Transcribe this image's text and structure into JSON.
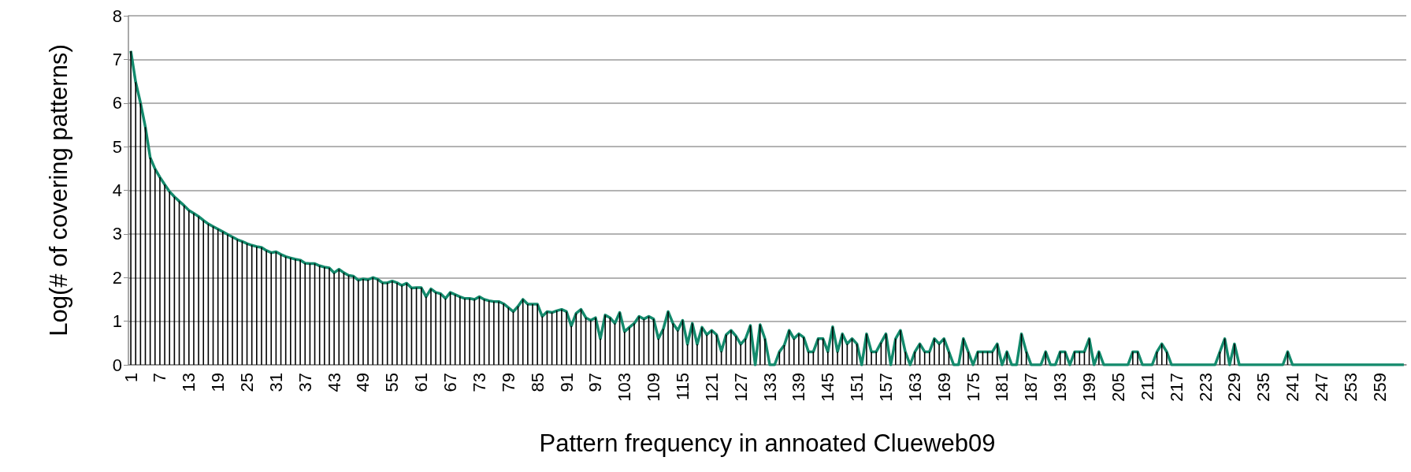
{
  "chart_data": {
    "type": "bar",
    "xlabel": "Pattern frequency in annoated Clueweb09",
    "ylabel": "Log(# of covering patterns)",
    "categories": [
      "1",
      null,
      null,
      null,
      null,
      null,
      "7",
      null,
      null,
      null,
      null,
      null,
      "13",
      null,
      null,
      null,
      null,
      null,
      "19",
      null,
      null,
      null,
      null,
      null,
      "25",
      null,
      null,
      null,
      null,
      null,
      "31",
      null,
      null,
      null,
      null,
      null,
      "37",
      null,
      null,
      null,
      null,
      null,
      "43",
      null,
      null,
      null,
      null,
      null,
      "49",
      null,
      null,
      null,
      null,
      null,
      "55",
      null,
      null,
      null,
      null,
      null,
      "61",
      null,
      null,
      null,
      null,
      null,
      "67",
      null,
      null,
      null,
      null,
      null,
      "73",
      null,
      null,
      null,
      null,
      null,
      "79",
      null,
      null,
      null,
      null,
      null,
      "85",
      null,
      null,
      null,
      null,
      null,
      "91",
      null,
      null,
      null,
      null,
      null,
      "97",
      null,
      null,
      null,
      null,
      null,
      "103",
      null,
      null,
      null,
      null,
      null,
      "109",
      null,
      null,
      null,
      null,
      null,
      "115",
      null,
      null,
      null,
      null,
      null,
      "121",
      null,
      null,
      null,
      null,
      null,
      "127",
      null,
      null,
      null,
      null,
      null,
      "133",
      null,
      null,
      null,
      null,
      null,
      "139",
      null,
      null,
      null,
      null,
      null,
      "145",
      null,
      null,
      null,
      null,
      null,
      "151",
      null,
      null,
      null,
      null,
      null,
      "157",
      null,
      null,
      null,
      null,
      null,
      "163",
      null,
      null,
      null,
      null,
      null,
      "169",
      null,
      null,
      null,
      null,
      null,
      "175",
      null,
      null,
      null,
      null,
      null,
      "181",
      null,
      null,
      null,
      null,
      null,
      "187",
      null,
      null,
      null,
      null,
      null,
      "193",
      null,
      null,
      null,
      null,
      null,
      "199",
      null,
      null,
      null,
      null,
      null,
      "205",
      null,
      null,
      null,
      null,
      null,
      "211",
      null,
      null,
      null,
      null,
      null,
      "217",
      null,
      null,
      null,
      null,
      null,
      "223",
      null,
      null,
      null,
      null,
      null,
      "229",
      null,
      null,
      null,
      null,
      null,
      "235",
      null,
      null,
      null,
      null,
      null,
      "241",
      null,
      null,
      null,
      null,
      null,
      "247",
      null,
      null,
      null,
      null,
      null,
      "253",
      null,
      null,
      null,
      null,
      null,
      "259",
      null,
      null,
      null,
      null,
      null
    ],
    "series": [
      {
        "color": "#000000",
        "values": [
          7.19,
          6.48,
          6.0,
          5.45,
          4.75,
          4.49,
          4.3,
          4.13,
          3.97,
          3.85,
          3.75,
          3.65,
          3.54,
          3.47,
          3.4,
          3.31,
          3.23,
          3.17,
          3.11,
          3.05,
          2.99,
          2.93,
          2.87,
          2.83,
          2.78,
          2.74,
          2.71,
          2.69,
          2.62,
          2.57,
          2.59,
          2.53,
          2.48,
          2.45,
          2.42,
          2.4,
          2.33,
          2.32,
          2.32,
          2.27,
          2.24,
          2.22,
          2.11,
          2.19,
          2.11,
          2.05,
          2.03,
          1.94,
          1.97,
          1.95,
          2.0,
          1.96,
          1.88,
          1.88,
          1.92,
          1.88,
          1.82,
          1.87,
          1.76,
          1.77,
          1.77,
          1.56,
          1.74,
          1.66,
          1.63,
          1.52,
          1.66,
          1.61,
          1.56,
          1.52,
          1.52,
          1.5,
          1.56,
          1.5,
          1.47,
          1.45,
          1.45,
          1.4,
          1.31,
          1.22,
          1.34,
          1.5,
          1.39,
          1.39,
          1.39,
          1.11,
          1.22,
          1.2,
          1.24,
          1.27,
          1.22,
          0.89,
          1.18,
          1.27,
          1.08,
          1.02,
          1.08,
          0.6,
          1.14,
          1.08,
          0.95,
          1.2,
          0.76,
          0.86,
          0.95,
          1.11,
          1.05,
          1.11,
          1.05,
          0.6,
          0.82,
          1.22,
          0.95,
          0.79,
          1.02,
          0.47,
          0.95,
          0.47,
          0.86,
          0.69,
          0.79,
          0.69,
          0.31,
          0.69,
          0.79,
          0.66,
          0.47,
          0.6,
          0.9,
          0,
          0.92,
          0.6,
          0,
          0,
          0.3,
          0.45,
          0.79,
          0.6,
          0.71,
          0.63,
          0.3,
          0.3,
          0.6,
          0.6,
          0.3,
          0.87,
          0.3,
          0.71,
          0.48,
          0.6,
          0.48,
          0,
          0.71,
          0.3,
          0.3,
          0.51,
          0.71,
          0,
          0.6,
          0.79,
          0.3,
          0,
          0.3,
          0.48,
          0.3,
          0.3,
          0.6,
          0.48,
          0.6,
          0.3,
          0,
          0,
          0.6,
          0.3,
          0,
          0.3,
          0.3,
          0.3,
          0.3,
          0.48,
          0,
          0.3,
          0,
          0,
          0.71,
          0.3,
          0,
          0,
          0,
          0.3,
          0,
          0,
          0.3,
          0.3,
          0,
          0.3,
          0.3,
          0.3,
          0.6,
          0,
          0.3,
          0,
          0,
          0,
          0,
          0,
          0,
          0.3,
          0.3,
          0,
          0,
          0,
          0.3,
          0.48,
          0.3,
          0,
          0,
          0,
          0,
          0,
          0,
          0,
          0,
          0,
          0,
          0.3,
          0.6,
          0,
          0.48,
          0,
          0,
          0,
          0,
          0,
          0,
          0,
          0,
          0,
          0,
          0.3,
          0,
          0,
          0,
          0,
          0,
          0,
          0,
          0,
          0,
          0,
          0,
          0,
          0,
          0,
          0,
          0,
          0,
          0,
          0,
          0,
          0,
          0,
          0,
          0
        ]
      },
      {
        "type": "line",
        "color": "#138a6c",
        "values": [
          7.19,
          6.48,
          6.0,
          5.45,
          4.75,
          4.49,
          4.3,
          4.13,
          3.97,
          3.85,
          3.75,
          3.65,
          3.54,
          3.47,
          3.4,
          3.31,
          3.23,
          3.17,
          3.11,
          3.05,
          2.99,
          2.93,
          2.87,
          2.83,
          2.78,
          2.74,
          2.71,
          2.69,
          2.62,
          2.57,
          2.59,
          2.53,
          2.48,
          2.45,
          2.42,
          2.4,
          2.33,
          2.32,
          2.32,
          2.27,
          2.24,
          2.22,
          2.11,
          2.19,
          2.11,
          2.05,
          2.03,
          1.94,
          1.97,
          1.95,
          2.0,
          1.96,
          1.88,
          1.88,
          1.92,
          1.88,
          1.82,
          1.87,
          1.76,
          1.77,
          1.77,
          1.56,
          1.74,
          1.66,
          1.63,
          1.52,
          1.66,
          1.61,
          1.56,
          1.52,
          1.52,
          1.5,
          1.56,
          1.5,
          1.47,
          1.45,
          1.45,
          1.4,
          1.31,
          1.22,
          1.34,
          1.5,
          1.39,
          1.39,
          1.39,
          1.11,
          1.22,
          1.2,
          1.24,
          1.27,
          1.22,
          0.89,
          1.18,
          1.27,
          1.08,
          1.02,
          1.08,
          0.6,
          1.14,
          1.08,
          0.95,
          1.2,
          0.76,
          0.86,
          0.95,
          1.11,
          1.05,
          1.11,
          1.05,
          0.6,
          0.82,
          1.22,
          0.95,
          0.79,
          1.02,
          0.47,
          0.95,
          0.47,
          0.86,
          0.69,
          0.79,
          0.69,
          0.31,
          0.69,
          0.79,
          0.66,
          0.47,
          0.6,
          0.9,
          0,
          0.92,
          0.6,
          0,
          0,
          0.3,
          0.45,
          0.79,
          0.6,
          0.71,
          0.63,
          0.3,
          0.3,
          0.6,
          0.6,
          0.3,
          0.87,
          0.3,
          0.71,
          0.48,
          0.6,
          0.48,
          0,
          0.71,
          0.3,
          0.3,
          0.51,
          0.71,
          0,
          0.6,
          0.79,
          0.3,
          0,
          0.3,
          0.48,
          0.3,
          0.3,
          0.6,
          0.48,
          0.6,
          0.3,
          0,
          0,
          0.6,
          0.3,
          0,
          0.3,
          0.3,
          0.3,
          0.3,
          0.48,
          0,
          0.3,
          0,
          0,
          0.71,
          0.3,
          0,
          0,
          0,
          0.3,
          0,
          0,
          0.3,
          0.3,
          0,
          0.3,
          0.3,
          0.3,
          0.6,
          0,
          0.3,
          0,
          0,
          0,
          0,
          0,
          0,
          0.3,
          0.3,
          0,
          0,
          0,
          0.3,
          0.48,
          0.3,
          0,
          0,
          0,
          0,
          0,
          0,
          0,
          0,
          0,
          0,
          0.3,
          0.6,
          0,
          0.48,
          0,
          0,
          0,
          0,
          0,
          0,
          0,
          0,
          0,
          0,
          0.3,
          0,
          0,
          0,
          0,
          0,
          0,
          0,
          0,
          0,
          0,
          0,
          0,
          0,
          0,
          0,
          0,
          0,
          0,
          0,
          0,
          0,
          0,
          0,
          0
        ]
      }
    ],
    "ylim": [
      0,
      8
    ],
    "yticks": [
      0,
      1,
      2,
      3,
      4,
      5,
      6,
      7,
      8
    ],
    "grid": "y",
    "marker": "none"
  }
}
